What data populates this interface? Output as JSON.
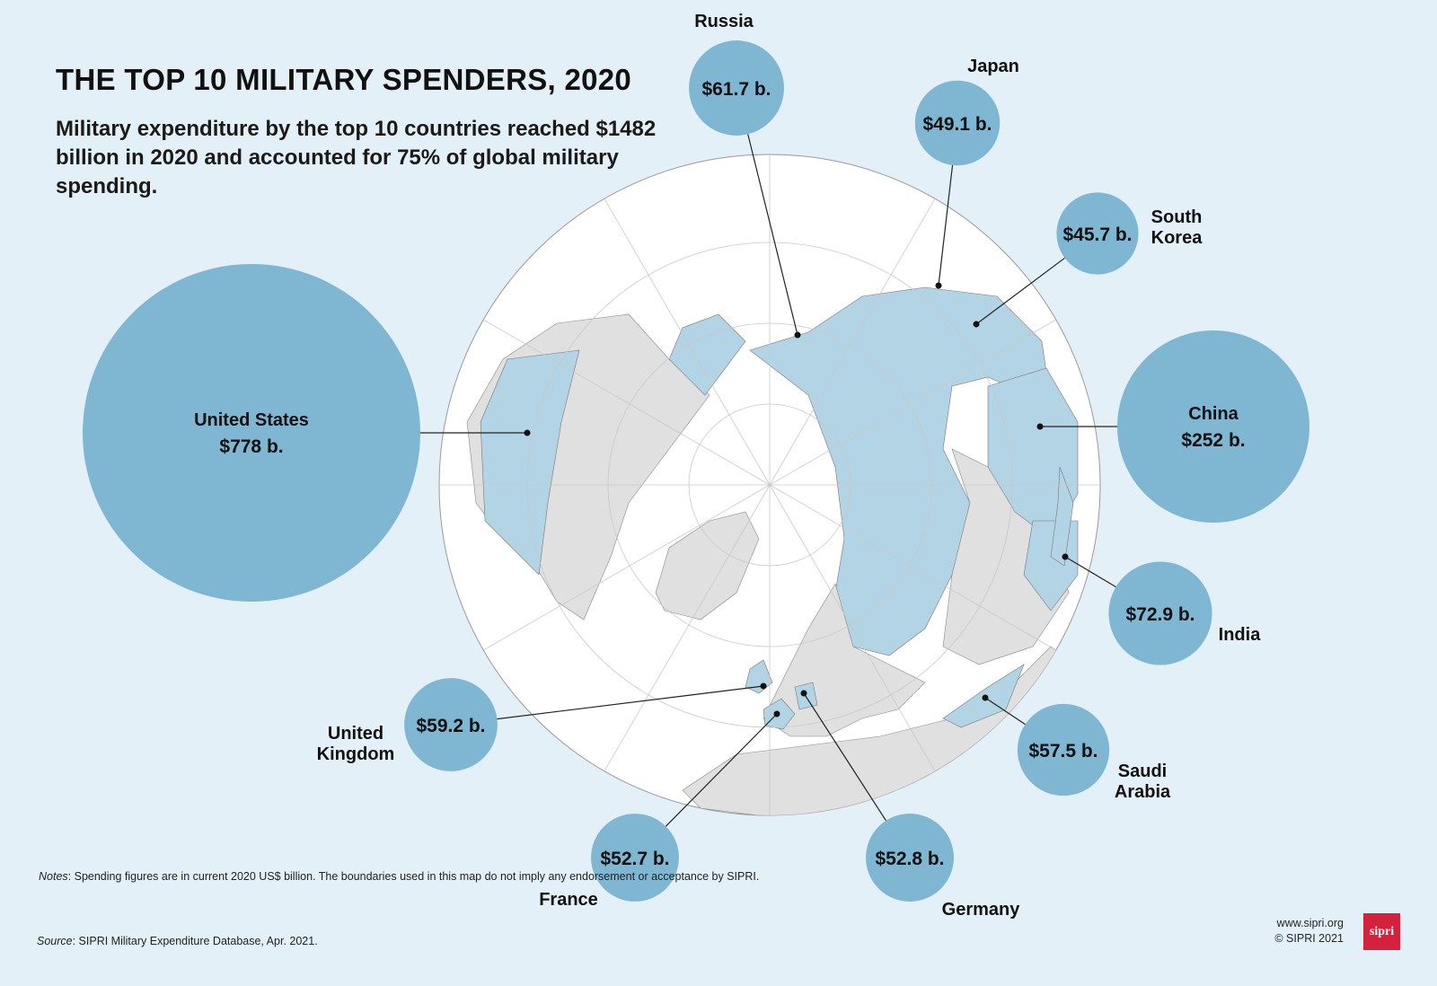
{
  "title": "THE TOP 10 MILITARY SPENDERS, 2020",
  "subtitle": "Military expenditure by the top 10 countries reached $1482 billion in 2020 and accounted for 75% of global military spending.",
  "notes": {
    "label": "Notes",
    "text": ": Spending figures are in current 2020 US$ billion. The boundaries used in this map do not imply any endorsement or acceptance by SIPRI."
  },
  "source": {
    "label": "Source",
    "text": ": SIPRI Military Expenditure Database, Apr. 2021."
  },
  "website": "www.sipri.org",
  "copyright": "© SIPRI 2021",
  "logo_text": "sipri",
  "colors": {
    "background": "#e4f0f7",
    "bubble": "#7fb6d2",
    "highlighted_country": "#b3d4e5",
    "other_land": "#e0e0e0",
    "ocean": "#ffffff",
    "logo": "#d4213d"
  },
  "chart_data": {
    "type": "proportional-symbol-map",
    "projection": "north polar azimuthal",
    "unit": "US$ billion",
    "countries": [
      {
        "name": "United States",
        "label_lines": [
          "United States"
        ],
        "value": 778,
        "value_label": "$778 b."
      },
      {
        "name": "China",
        "label_lines": [
          "China"
        ],
        "value": 252,
        "value_label": "$252 b."
      },
      {
        "name": "India",
        "label_lines": [
          "India"
        ],
        "value": 72.9,
        "value_label": "$72.9 b."
      },
      {
        "name": "Russia",
        "label_lines": [
          "Russia"
        ],
        "value": 61.7,
        "value_label": "$61.7 b."
      },
      {
        "name": "United Kingdom",
        "label_lines": [
          "United",
          "Kingdom"
        ],
        "value": 59.2,
        "value_label": "$59.2 b."
      },
      {
        "name": "Saudi Arabia",
        "label_lines": [
          "Saudi",
          "Arabia"
        ],
        "value": 57.5,
        "value_label": "$57.5 b."
      },
      {
        "name": "Germany",
        "label_lines": [
          "Germany"
        ],
        "value": 52.8,
        "value_label": "$52.8 b."
      },
      {
        "name": "France",
        "label_lines": [
          "France"
        ],
        "value": 52.7,
        "value_label": "$52.7 b."
      },
      {
        "name": "Japan",
        "label_lines": [
          "Japan"
        ],
        "value": 49.1,
        "value_label": "$49.1 b."
      },
      {
        "name": "South Korea",
        "label_lines": [
          "South",
          "Korea"
        ],
        "value": 45.7,
        "value_label": "$45.7 b."
      }
    ]
  }
}
